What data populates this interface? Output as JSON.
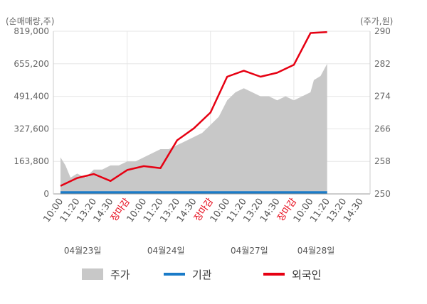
{
  "chart_data": {
    "type": "line",
    "y_left_label": "(순매매량,주)",
    "y_right_label": "(주가,원)",
    "y_left_ticks": [
      "819,000",
      "655,200",
      "491,400",
      "327,600",
      "163,800",
      "0"
    ],
    "y_left_lim": [
      0,
      819000
    ],
    "y_right_ticks": [
      "290",
      "282",
      "274",
      "266",
      "258",
      "250"
    ],
    "y_right_lim": [
      250,
      290
    ],
    "x_ticks": [
      "10:00",
      "11:20",
      "13:20",
      "14:30",
      "장마감",
      "10:00",
      "11:20",
      "13:20",
      "14:30",
      "장마감",
      "10:00",
      "11:20",
      "13:20",
      "14:30",
      "장마감",
      "10:00",
      "11:20",
      "13:20",
      "14:30"
    ],
    "dates": [
      "04월23일",
      "04월24일",
      "04월27일",
      "04월28일"
    ],
    "legend": [
      "주가",
      "기관",
      "외국인"
    ],
    "colors": {
      "price": "#c8c8c8",
      "institution": "#1a7bc8",
      "foreign": "#e60012",
      "close_label": "#e60012",
      "grid": "#e6e6e6"
    },
    "series": [
      {
        "name": "외국인",
        "axis": "left",
        "x": [
          0,
          1,
          2,
          3,
          4,
          5,
          6,
          7,
          8,
          9,
          10,
          11,
          12,
          13,
          14,
          15,
          16
        ],
        "values": [
          40000,
          80000,
          100000,
          65000,
          120000,
          140000,
          130000,
          270000,
          330000,
          410000,
          590000,
          620000,
          590000,
          610000,
          650000,
          810000,
          815000
        ]
      },
      {
        "name": "기관",
        "axis": "left",
        "x": [
          0,
          16
        ],
        "values": [
          3000,
          3000
        ]
      },
      {
        "name": "주가",
        "axis": "right",
        "type": "area",
        "x": [
          0,
          0.3,
          0.6,
          1,
          1.5,
          2,
          2.5,
          3,
          3.5,
          4,
          4.5,
          5,
          5.5,
          6,
          6.5,
          7,
          7.5,
          8,
          8.5,
          9,
          9.5,
          10,
          10.5,
          11,
          11.5,
          12,
          12.5,
          13,
          13.5,
          14,
          14.5,
          15,
          15.2,
          15.6,
          16
        ],
        "values": [
          259,
          257,
          254,
          255,
          254,
          256,
          256,
          257,
          257,
          258,
          258,
          259,
          260,
          261,
          261,
          262,
          263,
          264,
          265,
          267,
          269,
          273,
          275,
          276,
          275,
          274,
          274,
          273,
          274,
          273,
          274,
          275,
          278,
          279,
          282
        ]
      }
    ]
  }
}
